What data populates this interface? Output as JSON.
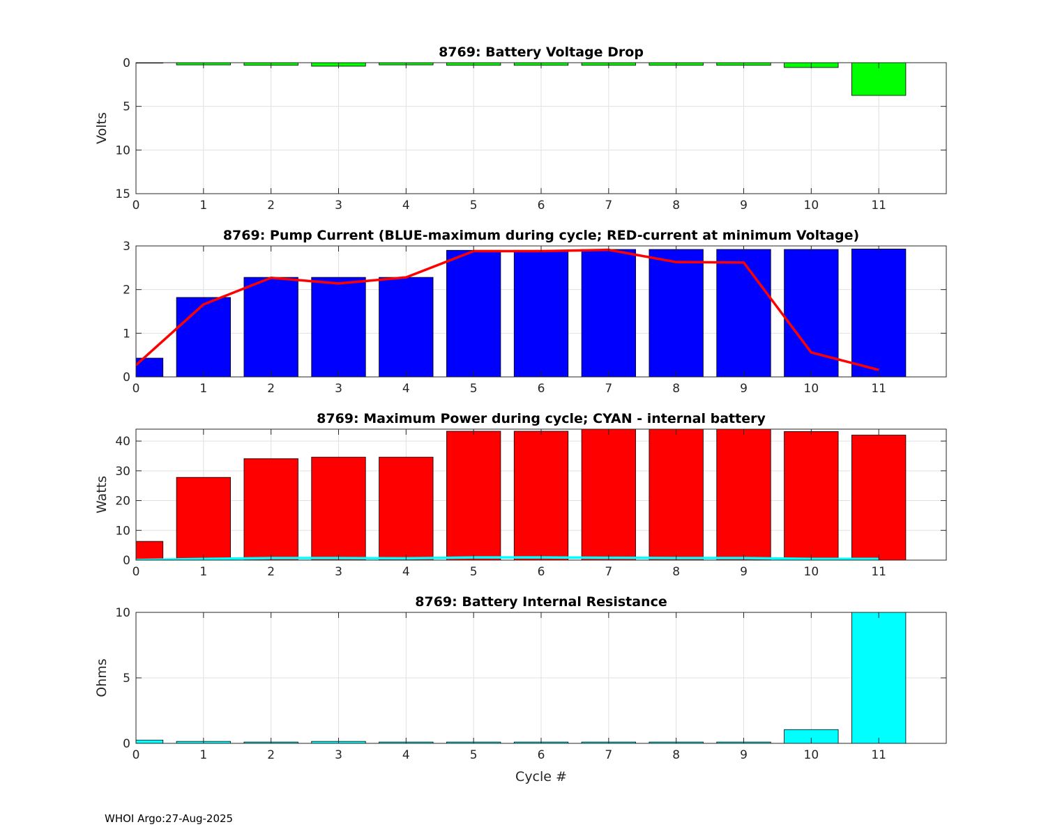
{
  "footer": "WHOI Argo:27-Aug-2025",
  "chart_data": [
    {
      "type": "bar",
      "title": "8769: Battery Voltage Drop",
      "xlabel": "",
      "ylabel": "Volts",
      "y_reversed": true,
      "xlim": [
        0,
        12
      ],
      "ylim": [
        0,
        15
      ],
      "xticks": [
        "0",
        "1",
        "2",
        "3",
        "4",
        "5",
        "6",
        "7",
        "8",
        "9",
        "10",
        "11"
      ],
      "yticks": [
        "0",
        "5",
        "10",
        "15"
      ],
      "bar_color": "#00ff00",
      "series": [
        {
          "name": "Voltage drop",
          "x": [
            0,
            1,
            2,
            3,
            4,
            5,
            6,
            7,
            8,
            9,
            10,
            11
          ],
          "values": [
            0.05,
            0.25,
            0.3,
            0.4,
            0.25,
            0.3,
            0.3,
            0.3,
            0.3,
            0.3,
            0.55,
            3.75
          ]
        }
      ]
    },
    {
      "type": "bar",
      "title": "8769: Pump Current (BLUE-maximum during cycle; RED-current at minimum Voltage)",
      "xlabel": "",
      "ylabel": "",
      "xlim": [
        0,
        12
      ],
      "ylim": [
        0,
        3
      ],
      "xticks": [
        "0",
        "1",
        "2",
        "3",
        "4",
        "5",
        "6",
        "7",
        "8",
        "9",
        "10",
        "11"
      ],
      "yticks": [
        "0",
        "1",
        "2",
        "3"
      ],
      "bar_color": "#0000ff",
      "line_color": "#ff0000",
      "series": [
        {
          "name": "BLUE-maximum during cycle",
          "x": [
            0,
            1,
            2,
            3,
            4,
            5,
            6,
            7,
            8,
            9,
            10,
            11
          ],
          "values": [
            0.43,
            1.82,
            2.28,
            2.28,
            2.28,
            2.9,
            2.9,
            2.92,
            2.92,
            2.92,
            2.92,
            2.93
          ]
        },
        {
          "name": "RED-current at minimum Voltage",
          "x": [
            0,
            1,
            2,
            3,
            4,
            5,
            6,
            7,
            8,
            9,
            10,
            11
          ],
          "values": [
            0.27,
            1.66,
            2.27,
            2.14,
            2.28,
            2.88,
            2.88,
            2.91,
            2.63,
            2.62,
            0.56,
            0.16
          ]
        }
      ]
    },
    {
      "type": "bar",
      "title": "8769: Maximum Power during cycle; CYAN - internal battery",
      "xlabel": "",
      "ylabel": "Watts",
      "xlim": [
        0,
        12
      ],
      "ylim": [
        0,
        44
      ],
      "xticks": [
        "0",
        "1",
        "2",
        "3",
        "4",
        "5",
        "6",
        "7",
        "8",
        "9",
        "10",
        "11"
      ],
      "yticks": [
        "0",
        "10",
        "20",
        "30",
        "40"
      ],
      "bar_color": "#ff0000",
      "line_color": "#00ffff",
      "series": [
        {
          "name": "Maximum Power",
          "x": [
            0,
            1,
            2,
            3,
            4,
            5,
            6,
            7,
            8,
            9,
            10,
            11
          ],
          "values": [
            6.3,
            27.8,
            34.1,
            34.6,
            34.6,
            43.3,
            43.3,
            44,
            44,
            44,
            43.2,
            42
          ]
        },
        {
          "name": "CYAN - internal battery",
          "x": [
            0,
            1,
            2,
            3,
            4,
            5,
            6,
            7,
            8,
            9,
            10,
            11
          ],
          "values": [
            0.02,
            0.4,
            0.7,
            0.7,
            0.6,
            0.9,
            0.9,
            0.8,
            0.7,
            0.7,
            0.4,
            0.4
          ]
        }
      ]
    },
    {
      "type": "bar",
      "title": "8769: Battery Internal Resistance",
      "xlabel": "Cycle #",
      "ylabel": "Ohms",
      "xlim": [
        0,
        12
      ],
      "ylim": [
        0,
        10
      ],
      "xticks": [
        "0",
        "1",
        "2",
        "3",
        "4",
        "5",
        "6",
        "7",
        "8",
        "9",
        "10",
        "11"
      ],
      "yticks": [
        "0",
        "5",
        "10"
      ],
      "bar_color": "#00ffff",
      "series": [
        {
          "name": "Resistance",
          "x": [
            0,
            1,
            2,
            3,
            4,
            5,
            6,
            7,
            8,
            9,
            10,
            11
          ],
          "values": [
            0.25,
            0.15,
            0.1,
            0.15,
            0.1,
            0.1,
            0.1,
            0.1,
            0.1,
            0.1,
            1.05,
            10
          ]
        }
      ]
    }
  ]
}
